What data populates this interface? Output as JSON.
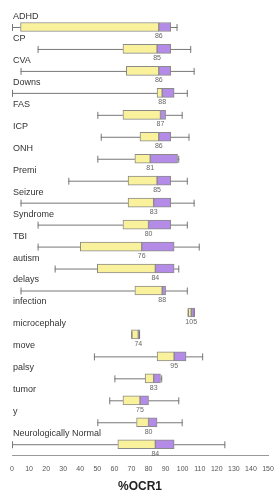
{
  "chart_data": {
    "type": "boxplot",
    "orientation": "horizontal",
    "categories": [
      "ADHD",
      "CP",
      "CVA",
      "Downs",
      "FAS",
      "ICP",
      "ONH",
      "Premi",
      "Seizure",
      "Syndrome",
      "TBI",
      "autism",
      "delays",
      "infection",
      "microcephaly",
      "move",
      "palsy",
      "tumor",
      "y",
      "Neurologically Normal"
    ],
    "min": [
      0,
      15,
      5,
      0,
      50,
      52,
      50,
      33,
      5,
      15,
      15,
      25,
      5,
      103,
      70,
      48,
      60,
      57,
      50,
      0
    ],
    "q1": [
      5,
      65,
      67,
      85,
      65,
      75,
      72,
      68,
      68,
      65,
      40,
      50,
      72,
      103,
      70,
      85,
      78,
      65,
      73,
      62
    ],
    "median": [
      86,
      85,
      86,
      88,
      87,
      86,
      81,
      85,
      83,
      80,
      76,
      84,
      88,
      105,
      74,
      95,
      83,
      75,
      80,
      84
    ],
    "q3": [
      93,
      93,
      93,
      95,
      90,
      93,
      97,
      93,
      93,
      93,
      95,
      95,
      90,
      107,
      75,
      102,
      87,
      80,
      85,
      95
    ],
    "max": [
      97,
      105,
      107,
      103,
      100,
      104,
      98,
      103,
      107,
      103,
      110,
      98,
      103,
      107,
      75,
      112,
      88,
      98,
      100,
      125
    ],
    "colors": [
      "#f9f19c",
      "#b48be6"
    ],
    "xlabel": "%OCR1",
    "xlim": [
      0,
      150
    ],
    "xticks": [
      0,
      10,
      20,
      30,
      40,
      50,
      60,
      70,
      80,
      90,
      100,
      110,
      120,
      130,
      140,
      150
    ],
    "grid": false,
    "data_labels": true
  }
}
